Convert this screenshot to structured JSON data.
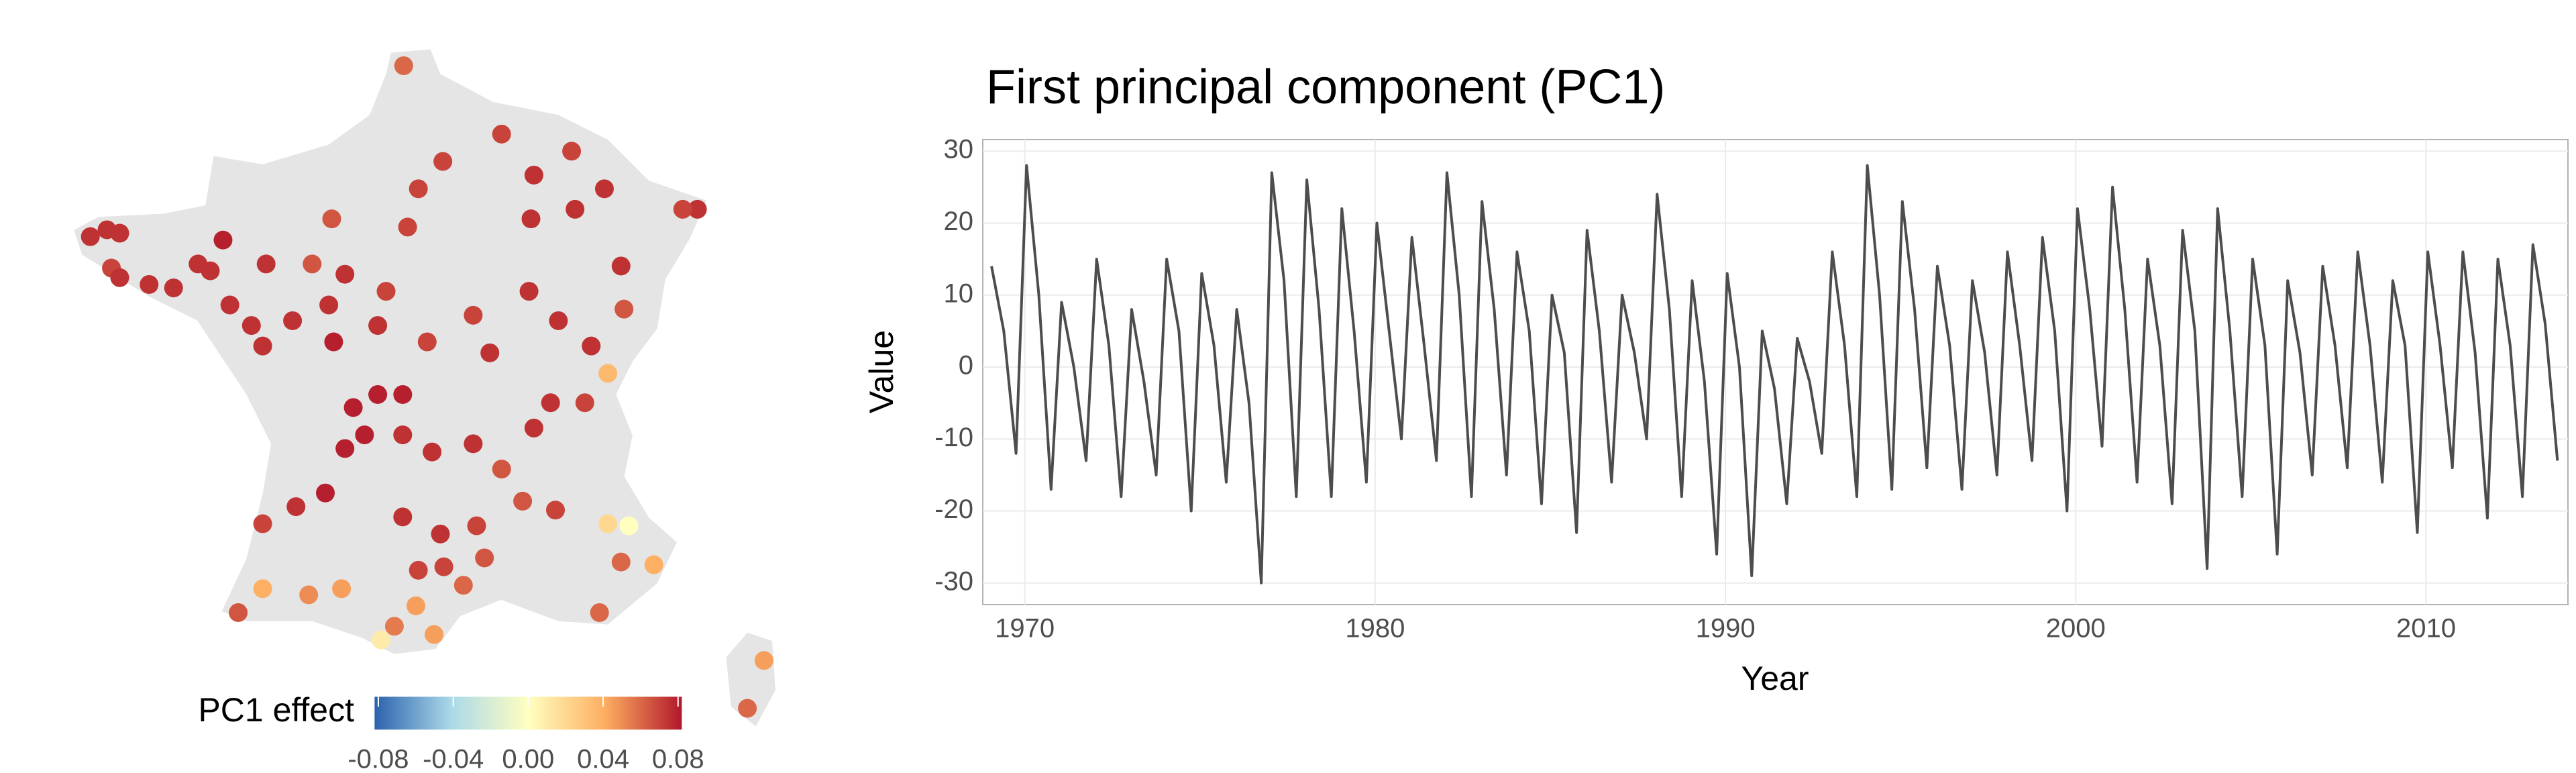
{
  "chart_data": [
    {
      "type": "map",
      "colorbar_title": "PC1 effect",
      "clim": [
        -0.082,
        0.082
      ],
      "colors": [
        "#2c63ad",
        "#abd9e9",
        "#ffffbf",
        "#fdae61",
        "#b2182b"
      ],
      "cticks": [
        -0.08,
        -0.04,
        {
          "value": 0,
          "label": "0.00"
        },
        0.04,
        0.08
      ],
      "x": [
        1.9,
        3.9,
        2.7,
        4.56,
        5.33,
        7.9,
        7.6,
        6.0,
        0.43,
        2.2,
        1.98,
        5.4,
        4.5,
        -4.5,
        -4.16,
        -3.9,
        -4.07,
        -3.9,
        -3.3,
        -2.8,
        -2.3,
        -1.79,
        -2.05,
        -0.91,
        0.03,
        0.7,
        1.54,
        -0.37,
        -1.21,
        -1.65,
        -0.98,
        0.37,
        0.47,
        1.37,
        2.38,
        3.32,
        3.66,
        4.46,
        5.06,
        5.73,
        6.34,
        6.4,
        6.07,
        5.6,
        4.9,
        0.87,
        1.37,
        1.88,
        0.7,
        1.1,
        1.88,
        2.48,
        3.32,
        4.56,
        3.9,
        0.3,
        -0.98,
        -0.3,
        1.88,
        2.65,
        3.39,
        4.33,
        5.0,
        6.07,
        6.5,
        6.34,
        7.01,
        5.9,
        -0.98,
        -0.04,
        0.63,
        -1.48,
        1.71,
        1.44,
        2.15,
        2.52,
        3.55,
        2.72,
        9.26,
        8.92,
        3.12,
        2.2
      ],
      "y": [
        51.0,
        50.0,
        49.6,
        49.4,
        49.75,
        48.9,
        48.9,
        49.2,
        48.76,
        49.2,
        48.64,
        48.9,
        48.76,
        48.5,
        48.6,
        48.55,
        48.04,
        47.9,
        47.8,
        47.75,
        48.1,
        48.45,
        48.0,
        48.1,
        48.1,
        47.95,
        47.7,
        47.27,
        47.2,
        47.5,
        46.9,
        47.5,
        46.96,
        47.2,
        46.96,
        47.35,
        46.8,
        47.7,
        47.27,
        46.9,
        48.07,
        47.44,
        46.5,
        46.07,
        46.07,
        46.0,
        46.19,
        46.19,
        45.4,
        45.6,
        45.6,
        45.35,
        45.47,
        45.7,
        45.1,
        44.75,
        44.3,
        44.55,
        44.4,
        44.15,
        44.27,
        44.63,
        44.5,
        44.3,
        44.27,
        43.74,
        43.7,
        43.0,
        43.35,
        43.26,
        43.35,
        43.0,
        42.8,
        42.6,
        43.1,
        42.68,
        43.8,
        43.67,
        42.3,
        41.6,
        43.4,
        43.62
      ],
      "values": [
        0.06,
        0.07,
        0.07,
        0.075,
        0.07,
        0.075,
        0.07,
        0.075,
        0.065,
        0.07,
        0.07,
        0.075,
        0.075,
        0.075,
        0.075,
        0.075,
        0.07,
        0.075,
        0.075,
        0.075,
        0.075,
        0.08,
        0.075,
        0.075,
        0.065,
        0.075,
        0.07,
        0.075,
        0.075,
        0.075,
        0.075,
        0.075,
        0.08,
        0.075,
        0.07,
        0.07,
        0.075,
        0.075,
        0.075,
        0.075,
        0.075,
        0.065,
        0.035,
        0.07,
        0.075,
        0.08,
        0.08,
        0.08,
        0.08,
        0.08,
        0.075,
        0.075,
        0.075,
        0.075,
        0.065,
        0.08,
        0.07,
        0.075,
        0.075,
        0.075,
        0.07,
        0.065,
        0.07,
        0.02,
        0.0,
        0.06,
        0.04,
        0.06,
        0.04,
        0.05,
        0.045,
        0.065,
        0.055,
        0.01,
        0.045,
        0.045,
        0.065,
        0.07,
        0.045,
        0.06,
        0.06,
        0.07
      ]
    },
    {
      "type": "line",
      "title": "First principal component (PC1)",
      "xlabel": "Year",
      "ylabel": "Value",
      "color": "#4d4d4d",
      "grid": true,
      "xlim": [
        1968.8,
        2014.05
      ],
      "ylim": [
        -33,
        31.6
      ],
      "xticks": [
        1970,
        1980,
        1990,
        2000,
        2010
      ],
      "yticks": [
        -30,
        -20,
        -10,
        0,
        10,
        20,
        30
      ],
      "x": [
        1969.05,
        1969.4,
        1969.75,
        1970.05,
        1970.4,
        1970.75,
        1971.05,
        1971.4,
        1971.75,
        1972.05,
        1972.4,
        1972.75,
        1973.05,
        1973.4,
        1973.75,
        1974.05,
        1974.4,
        1974.75,
        1975.05,
        1975.4,
        1975.75,
        1976.05,
        1976.4,
        1976.75,
        1977.05,
        1977.4,
        1977.75,
        1978.05,
        1978.4,
        1978.75,
        1979.05,
        1979.4,
        1979.75,
        1980.05,
        1980.4,
        1980.75,
        1981.05,
        1981.4,
        1981.75,
        1982.05,
        1982.4,
        1982.75,
        1983.05,
        1983.4,
        1983.75,
        1984.05,
        1984.4,
        1984.75,
        1985.05,
        1985.4,
        1985.75,
        1986.05,
        1986.4,
        1986.75,
        1987.05,
        1987.4,
        1987.75,
        1988.05,
        1988.4,
        1988.75,
        1989.05,
        1989.4,
        1989.75,
        1990.05,
        1990.4,
        1990.75,
        1991.05,
        1991.4,
        1991.75,
        1992.05,
        1992.4,
        1992.75,
        1993.05,
        1993.4,
        1993.75,
        1994.05,
        1994.4,
        1994.75,
        1995.05,
        1995.4,
        1995.75,
        1996.05,
        1996.4,
        1996.75,
        1997.05,
        1997.4,
        1997.75,
        1998.05,
        1998.4,
        1998.75,
        1999.05,
        1999.4,
        1999.75,
        2000.05,
        2000.4,
        2000.75,
        2001.05,
        2001.4,
        2001.75,
        2002.05,
        2002.4,
        2002.75,
        2003.05,
        2003.4,
        2003.75,
        2004.05,
        2004.4,
        2004.75,
        2005.05,
        2005.4,
        2005.75,
        2006.05,
        2006.4,
        2006.75,
        2007.05,
        2007.4,
        2007.75,
        2008.05,
        2008.4,
        2008.75,
        2009.05,
        2009.4,
        2009.75,
        2010.05,
        2010.4,
        2010.75,
        2011.05,
        2011.4,
        2011.75,
        2012.05,
        2012.4,
        2012.75,
        2013.05,
        2013.4,
        2013.75
      ],
      "values": [
        14,
        5,
        -12,
        28,
        10,
        -17,
        9,
        0,
        -13,
        15,
        3,
        -18,
        8,
        -2,
        -15,
        15,
        5,
        -20,
        13,
        3,
        -16,
        8,
        -5,
        -30,
        27,
        12,
        -18,
        26,
        8,
        -18,
        22,
        5,
        -16,
        20,
        5,
        -10,
        18,
        3,
        -13,
        27,
        10,
        -18,
        23,
        8,
        -15,
        16,
        5,
        -19,
        10,
        2,
        -23,
        19,
        5,
        -16,
        10,
        2,
        -10,
        24,
        8,
        -18,
        12,
        -2,
        -26,
        13,
        0,
        -29,
        5,
        -3,
        -19,
        4,
        -2,
        -12,
        16,
        3,
        -18,
        28,
        10,
        -17,
        23,
        8,
        -14,
        14,
        3,
        -17,
        12,
        2,
        -15,
        16,
        3,
        -13,
        18,
        5,
        -20,
        22,
        8,
        -11,
        25,
        8,
        -16,
        15,
        3,
        -19,
        19,
        5,
        -28,
        22,
        5,
        -18,
        15,
        3,
        -26,
        12,
        2,
        -15,
        14,
        3,
        -14,
        16,
        3,
        -16,
        12,
        3,
        -23,
        16,
        3,
        -14,
        16,
        2,
        -21,
        15,
        3,
        -18,
        17,
        6,
        -13
      ]
    }
  ]
}
